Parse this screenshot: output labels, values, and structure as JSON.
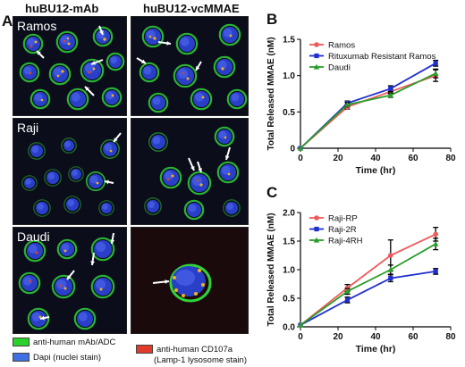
{
  "figure": {
    "panel_a": {
      "letter": "A",
      "column_titles": [
        "huBU12-mAb",
        "huBU12-vcMMAE"
      ],
      "rows": [
        {
          "label": "Ramos"
        },
        {
          "label": "Raji"
        },
        {
          "label": "Daudi"
        }
      ],
      "legend": [
        {
          "text": "anti-human mAb/ADC",
          "color": "#2bd12b"
        },
        {
          "text": "Dapi (nuclei stain)",
          "color": "#3f6fe0"
        },
        {
          "text": "anti-human CD107a",
          "text2": "(Lamp-1 lysosome stain)",
          "color": "#e03a2a"
        }
      ]
    },
    "panel_b": {
      "letter": "B"
    },
    "panel_c": {
      "letter": "C"
    }
  },
  "chart_data": [
    {
      "type": "line",
      "panel": "B",
      "xlabel": "Time (hr)",
      "ylabel": "Total Released MMAE (nM)",
      "xlim": [
        0,
        80
      ],
      "ylim": [
        0,
        1.5
      ],
      "xticks": [
        0,
        20,
        40,
        60,
        80
      ],
      "yticks": [
        0,
        0.5,
        1.0,
        1.5
      ],
      "xtick_labels": [
        "0",
        "20",
        "40",
        "60",
        "80"
      ],
      "ytick_labels": [
        "0",
        "0.5",
        "1.0",
        "1.5"
      ],
      "legend_position": "top-left",
      "grid": false,
      "series": [
        {
          "name": "Ramos",
          "color": "#f05a5a",
          "marker": "circle",
          "x": [
            0,
            25,
            48,
            72
          ],
          "y": [
            0.0,
            0.57,
            0.78,
            1.0
          ],
          "err": [
            0,
            0.03,
            0.03,
            0.08
          ]
        },
        {
          "name": "Rituxumab Resistant Ramos",
          "color": "#1f2fd0",
          "marker": "square",
          "x": [
            0,
            25,
            48,
            72
          ],
          "y": [
            0.0,
            0.62,
            0.82,
            1.17
          ],
          "err": [
            0,
            0.03,
            0.04,
            0.04
          ]
        },
        {
          "name": "Daudi",
          "color": "#2a9d2a",
          "marker": "triangle",
          "x": [
            0,
            25,
            48,
            72
          ],
          "y": [
            0.0,
            0.6,
            0.73,
            1.03
          ],
          "err": [
            0,
            0.03,
            0.03,
            0.06
          ]
        }
      ]
    },
    {
      "type": "line",
      "panel": "C",
      "xlabel": "Time (hr)",
      "ylabel": "Total Released MMAE (nM)",
      "xlim": [
        0,
        80
      ],
      "ylim": [
        0,
        2.0
      ],
      "xticks": [
        0,
        20,
        40,
        60,
        80
      ],
      "yticks": [
        0,
        0.5,
        1.0,
        1.5,
        2.0
      ],
      "xtick_labels": [
        "0",
        "20",
        "40",
        "60",
        "80"
      ],
      "ytick_labels": [
        "0.0",
        "0.5",
        "1.0",
        "1.5",
        "2.0"
      ],
      "legend_position": "top-left",
      "grid": false,
      "series": [
        {
          "name": "Raji-RP",
          "color": "#f05a5a",
          "marker": "circle",
          "x": [
            0,
            25,
            48,
            72
          ],
          "y": [
            0.03,
            0.68,
            1.25,
            1.62
          ],
          "err": [
            0,
            0.06,
            0.27,
            0.12
          ]
        },
        {
          "name": "Raji-2R",
          "color": "#1f2fd0",
          "marker": "square",
          "x": [
            0,
            25,
            48,
            72
          ],
          "y": [
            0.03,
            0.47,
            0.85,
            0.97
          ],
          "err": [
            0,
            0.05,
            0.06,
            0.05
          ]
        },
        {
          "name": "Raji-4RH",
          "color": "#2a9d2a",
          "marker": "triangle",
          "x": [
            0,
            25,
            48,
            72
          ],
          "y": [
            0.03,
            0.62,
            1.0,
            1.45
          ],
          "err": [
            0,
            0.05,
            0.08,
            0.1
          ]
        }
      ]
    }
  ]
}
